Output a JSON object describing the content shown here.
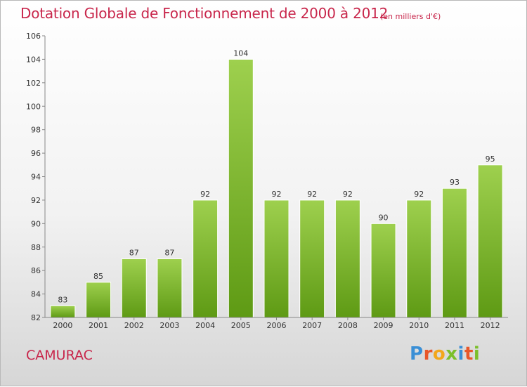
{
  "header": {
    "title": "Dotation Globale de Fonctionnement de 2000 à 2012",
    "subtitle": "(en milliers d'€)"
  },
  "commune": "CAMURAC",
  "logo": {
    "text": "Proxiti",
    "colors": [
      "#3a8fd6",
      "#e8572a",
      "#f2a71b",
      "#7bbf2a",
      "#3a8fd6",
      "#e8572a",
      "#7bbf2a"
    ]
  },
  "colors": {
    "bar_top": "#9ed04e",
    "bar_bottom": "#5e9a14",
    "title": "#c8264b"
  },
  "chart_data": {
    "type": "bar",
    "title": "Dotation Globale de Fonctionnement de 2000 à 2012",
    "subtitle": "(en milliers d'€)",
    "categories": [
      "2000",
      "2001",
      "2002",
      "2003",
      "2004",
      "2005",
      "2006",
      "2007",
      "2008",
      "2009",
      "2010",
      "2011",
      "2012"
    ],
    "values": [
      83,
      85,
      87,
      87,
      92,
      104,
      92,
      92,
      92,
      90,
      92,
      93,
      95
    ],
    "ylim": [
      82,
      106
    ],
    "yticks": [
      82,
      84,
      86,
      88,
      90,
      92,
      94,
      96,
      98,
      100,
      102,
      104,
      106
    ],
    "grid": false,
    "xlabel": "",
    "ylabel": ""
  }
}
